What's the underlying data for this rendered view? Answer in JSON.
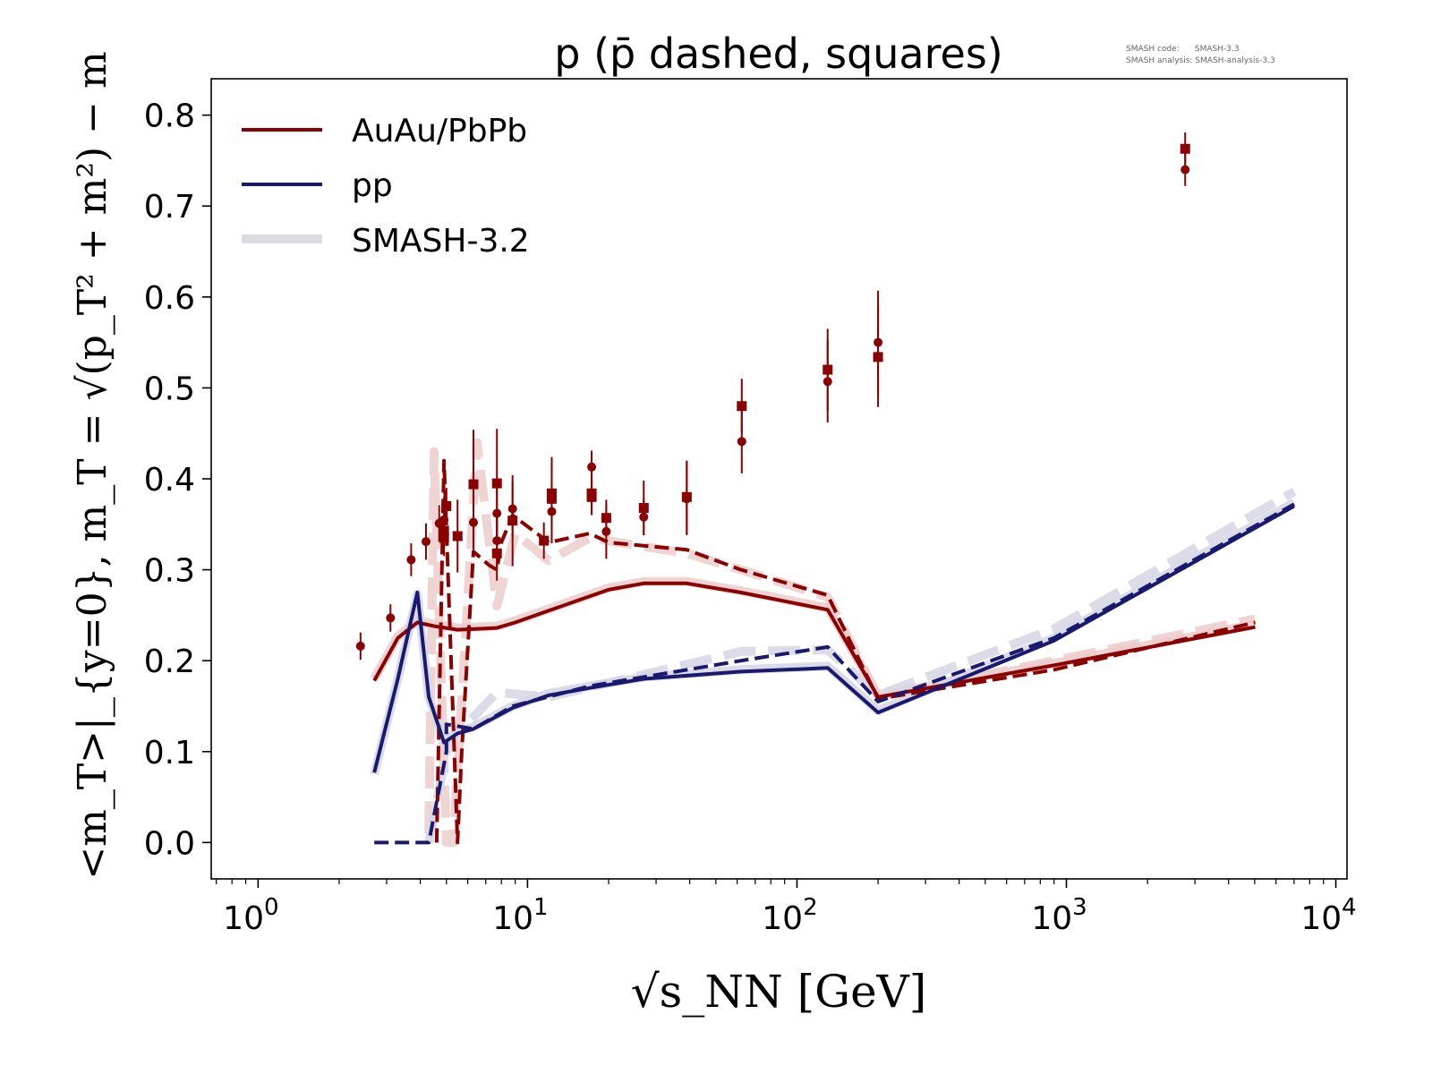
{
  "chart_data": {
    "type": "line",
    "title": "p (p̄ dashed, squares)",
    "xlabel": "√s_NN [GeV]",
    "ylabel": "<m_T>|_{y=0}, m_T = √(p_T² + m²) − m",
    "xscale": "log",
    "xlim": [
      0.67,
      11000
    ],
    "ylim": [
      -0.04,
      0.84
    ],
    "xticks": [
      1,
      10,
      100,
      1000,
      10000
    ],
    "xtick_labels": [
      [
        "10",
        "0"
      ],
      [
        "10",
        "1"
      ],
      [
        "10",
        "2"
      ],
      [
        "10",
        "3"
      ],
      [
        "10",
        "4"
      ]
    ],
    "yticks": [
      0.0,
      0.1,
      0.2,
      0.3,
      0.4,
      0.5,
      0.6,
      0.7,
      0.8
    ],
    "ytick_labels": [
      "0.0",
      "0.1",
      "0.2",
      "0.3",
      "0.4",
      "0.5",
      "0.6",
      "0.7",
      "0.8"
    ],
    "legend": {
      "placement": "top-left",
      "entries": [
        {
          "label": "AuAu/PbPb",
          "color": "#8b0000"
        },
        {
          "label": "pp",
          "color": "#191970"
        },
        {
          "label": "SMASH-3.2",
          "color": "#dcdce2"
        }
      ]
    },
    "annotation": [
      "SMASH code:      SMASH-3.3",
      "SMASH analysis: SMASH-analysis-3.3"
    ],
    "series": [
      {
        "name": "SMASH-3.2 AuAu p",
        "style": "faint-solid",
        "color": "#eccccc",
        "x": [
          2.7,
          3.3,
          3.9,
          4.5,
          5.5,
          7.7,
          9,
          12,
          20,
          27,
          39,
          62,
          130,
          200,
          900,
          5020
        ],
        "y": [
          0.18,
          0.227,
          0.244,
          0.24,
          0.236,
          0.238,
          0.244,
          0.257,
          0.28,
          0.287,
          0.287,
          0.277,
          0.258,
          0.162,
          0.197,
          0.24
        ]
      },
      {
        "name": "SMASH-3.2 AuAu pbar",
        "style": "faint-dashed",
        "color": "#eccccc",
        "x": [
          4.3,
          4.5,
          5.0,
          5.3,
          6.5,
          7.7,
          9,
          12,
          17,
          39,
          62,
          130,
          200,
          900,
          5020
        ],
        "y": [
          0.01,
          0.43,
          0.0,
          0.0,
          0.44,
          0.26,
          0.34,
          0.31,
          0.335,
          0.318,
          0.3,
          0.27,
          0.16,
          0.2,
          0.246
        ]
      },
      {
        "name": "SMASH-3.2 pp p",
        "style": "faint-solid",
        "color": "#d6d6e4",
        "x": [
          2.7,
          3.3,
          3.9,
          4.3,
          4.9,
          5.5,
          6.3,
          8.8,
          12,
          17,
          27,
          62,
          130,
          200,
          900,
          7000
        ],
        "y": [
          0.075,
          0.18,
          0.273,
          0.16,
          0.112,
          0.122,
          0.127,
          0.15,
          0.164,
          0.172,
          0.182,
          0.19,
          0.194,
          0.145,
          0.225,
          0.374
        ]
      },
      {
        "name": "SMASH-3.2 pp pbar",
        "style": "faint-dashed",
        "color": "#d6d6e4",
        "x": [
          4.3,
          5.0,
          5.5,
          7.7,
          12,
          62,
          130,
          200,
          900,
          7000
        ],
        "y": [
          0.0,
          0.1,
          0.12,
          0.165,
          0.16,
          0.21,
          0.212,
          0.162,
          0.235,
          0.386
        ]
      },
      {
        "name": "AuAu p",
        "style": "solid",
        "color": "#8b0000",
        "x": [
          2.7,
          3.3,
          3.9,
          4.5,
          5.5,
          7.7,
          9,
          12,
          20,
          27,
          39,
          62,
          130,
          200,
          900,
          5020
        ],
        "y": [
          0.178,
          0.225,
          0.242,
          0.238,
          0.234,
          0.236,
          0.242,
          0.255,
          0.278,
          0.285,
          0.285,
          0.275,
          0.256,
          0.16,
          0.195,
          0.237
        ]
      },
      {
        "name": "AuAu pbar",
        "style": "dashed",
        "color": "#8b0000",
        "x": [
          4.6,
          4.9,
          5.5,
          5.7,
          6.3,
          7.2,
          7.7,
          8.0,
          8.8,
          12,
          17,
          20,
          39,
          62,
          130,
          200,
          900,
          5020
        ],
        "y": [
          0.0,
          0.42,
          0.0,
          0.1,
          0.32,
          0.305,
          0.3,
          0.33,
          0.36,
          0.33,
          0.34,
          0.33,
          0.322,
          0.3,
          0.272,
          0.158,
          0.19,
          0.242
        ]
      },
      {
        "name": "pp p",
        "style": "solid",
        "color": "#191970",
        "x": [
          2.7,
          3.3,
          3.9,
          4.3,
          4.9,
          5.5,
          6.3,
          8.8,
          12,
          17,
          27,
          62,
          130,
          200,
          900,
          7000
        ],
        "y": [
          0.077,
          0.18,
          0.275,
          0.16,
          0.11,
          0.12,
          0.125,
          0.148,
          0.162,
          0.17,
          0.18,
          0.188,
          0.192,
          0.143,
          0.222,
          0.37
        ]
      },
      {
        "name": "pp pbar",
        "style": "dashed",
        "color": "#191970",
        "x": [
          2.7,
          4.3,
          5.0,
          5.0,
          6.3,
          8.8,
          17,
          62,
          130,
          200,
          900,
          7000
        ],
        "y": [
          0.0,
          0.0,
          0.1,
          0.13,
          0.125,
          0.15,
          0.172,
          0.2,
          0.215,
          0.155,
          0.225,
          0.372
        ]
      }
    ],
    "points": [
      {
        "name": "AuAu p data",
        "marker": "circle",
        "color": "#8b0000",
        "x": [
          2.4,
          3.1,
          3.7,
          4.2,
          4.7,
          4.9,
          6.3,
          7.7,
          7.7,
          8.8,
          12.3,
          17.3,
          19.6,
          27,
          39,
          62.4,
          130,
          200,
          2760
        ],
        "y": [
          0.216,
          0.247,
          0.311,
          0.331,
          0.351,
          0.355,
          0.352,
          0.362,
          0.332,
          0.367,
          0.364,
          0.413,
          0.342,
          0.358,
          0.378,
          0.441,
          0.507,
          0.55,
          0.74
        ],
        "err": [
          0.015,
          0.015,
          0.018,
          0.02,
          0.02,
          0.025,
          0.03,
          0.03,
          0.03,
          0.03,
          0.035,
          0.018,
          0.03,
          0.02,
          0.04,
          0.035,
          0.045,
          0.057,
          0.018
        ]
      },
      {
        "name": "AuAu pbar data",
        "marker": "square",
        "color": "#8b0000",
        "x": [
          4.9,
          4.9,
          5.0,
          5.5,
          6.3,
          7.7,
          7.7,
          8.8,
          11.5,
          12.3,
          12.3,
          17.3,
          17.3,
          19.6,
          27,
          39,
          62.4,
          130,
          200,
          2760
        ],
        "y": [
          0.343,
          0.335,
          0.37,
          0.337,
          0.394,
          0.395,
          0.318,
          0.354,
          0.332,
          0.384,
          0.378,
          0.384,
          0.38,
          0.357,
          0.368,
          0.38,
          0.48,
          0.52,
          0.534,
          0.763
        ],
        "err": [
          0.02,
          0.02,
          0.02,
          0.04,
          0.06,
          0.06,
          0.03,
          0.05,
          0.02,
          0.04,
          0.04,
          0.02,
          0.02,
          0.02,
          0.03,
          0.04,
          0.03,
          0.045,
          0.055,
          0.018
        ]
      }
    ]
  }
}
